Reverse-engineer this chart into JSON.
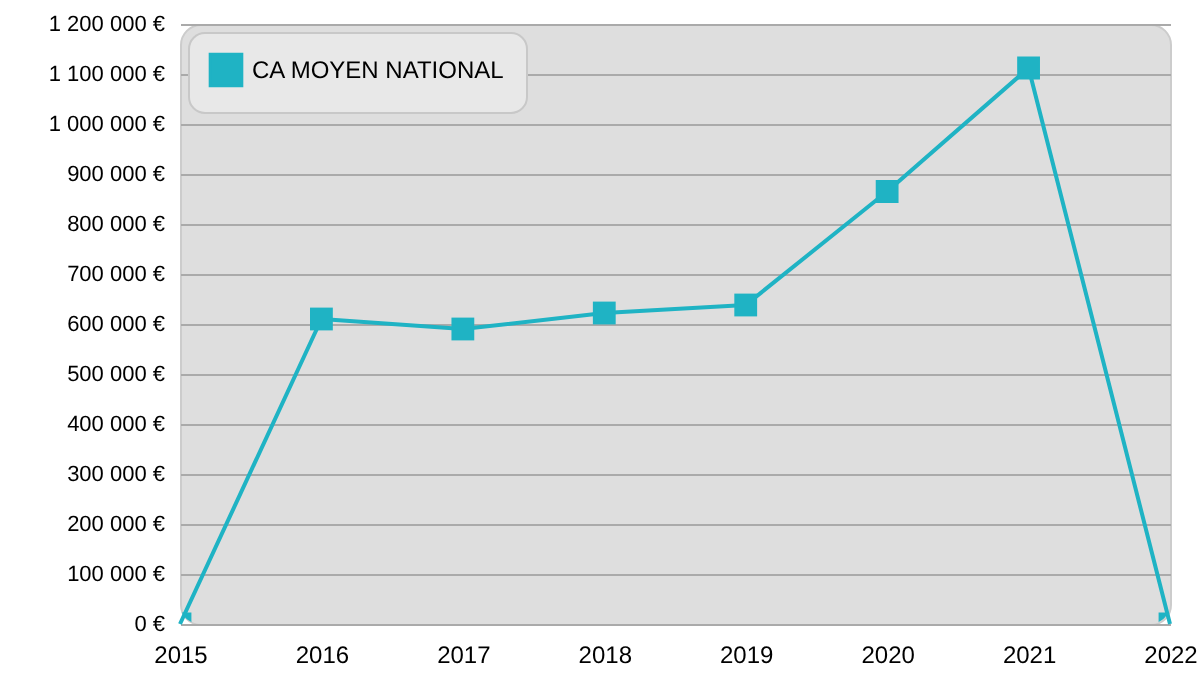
{
  "chart_data": {
    "type": "line",
    "categories": [
      "2015",
      "2016",
      "2017",
      "2018",
      "2019",
      "2020",
      "2021",
      "2022"
    ],
    "series": [
      {
        "name": "CA MOYEN NATIONAL",
        "color": "#1fb3c4",
        "values": [
          0,
          610000,
          590000,
          622000,
          638000,
          865000,
          1112000,
          0
        ]
      }
    ],
    "ylim": [
      0,
      1200000
    ],
    "yticks": [
      {
        "value": 0,
        "label": "0 €"
      },
      {
        "value": 100000,
        "label": "100 000 €"
      },
      {
        "value": 200000,
        "label": "200 000 €"
      },
      {
        "value": 300000,
        "label": "300 000 €"
      },
      {
        "value": 400000,
        "label": "400 000 €"
      },
      {
        "value": 500000,
        "label": "500 000 €"
      },
      {
        "value": 600000,
        "label": "600 000 €"
      },
      {
        "value": 700000,
        "label": "700 000 €"
      },
      {
        "value": 800000,
        "label": "800 000 €"
      },
      {
        "value": 900000,
        "label": "900 000 €"
      },
      {
        "value": 1000000,
        "label": "1 000 000 €"
      },
      {
        "value": 1100000,
        "label": "1 100 000 €"
      },
      {
        "value": 1200000,
        "label": "1 200 000 €"
      }
    ],
    "grid": "y",
    "legend": "top left",
    "marker": "square",
    "line_style": "solid"
  }
}
